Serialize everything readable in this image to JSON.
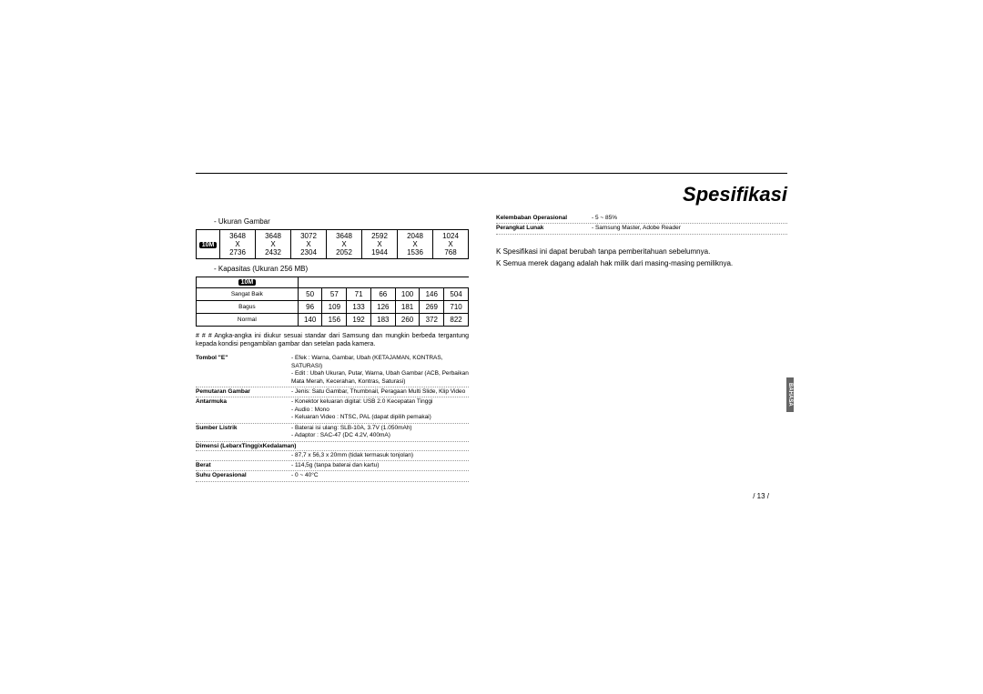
{
  "title": "Spesifikasi",
  "section1_label": "- Ukuran Gambar",
  "icon_label": "10M",
  "table1": {
    "rows": [
      [
        "3648\nX\n2736",
        "3648\nX\n2432",
        "3072\nX\n2304",
        "3648\nX\n2052",
        "2592\nX\n1944",
        "2048\nX\n1536",
        "1024\nX\n768"
      ]
    ]
  },
  "section2_label": "- Kapasitas (Ukuran 256 MB)",
  "table2": {
    "row_labels": [
      "Sangat Baik",
      "Bagus",
      "Normal"
    ],
    "data": [
      [
        "50",
        "57",
        "71",
        "66",
        "100",
        "146",
        "504"
      ],
      [
        "96",
        "109",
        "133",
        "126",
        "181",
        "269",
        "710"
      ],
      [
        "140",
        "156",
        "192",
        "183",
        "260",
        "372",
        "822"
      ]
    ]
  },
  "note_symbol": "# # #",
  "note_text": "Angka-angka ini diukur sesuai standar dari Samsung dan mungkin berbeda tergantung kepada kondisi pengambilan gambar dan setelan pada kamera.",
  "specs_left": [
    {
      "key": "Tombol \"E\"",
      "val": "- Efek : Warna, Gambar, Ubah (KETAJAMAN, KONTRAS, SATURASI)\n- Edit : Ubah Ukuran, Putar, Warna, Ubah Gambar (ACB, Perbaikan Mata Merah, Kecerahan, Kontras, Saturasi)"
    },
    {
      "key": "Pemutaran Gambar",
      "val": "- Jenis: Satu Gambar, Thumbnail, Peragaan Multi Slide, Klip Video"
    },
    {
      "key": "Antarmuka",
      "val": "- Konektor keluaran digital: USB 2.0 Kecepatan Tinggi\n- Audio : Mono\n- Keluaran Video : NTSC, PAL (dapat dipilih pemakai)"
    },
    {
      "key": "Sumber Listrik",
      "val": "- Baterai isi ulang: SLB-10A,  3.7V  (1.050mAh)\n- Adaptor : SAC-47 (DC 4.2V, 400mA)"
    },
    {
      "key": "Dimensi (LebarxTinggixKedalaman)",
      "val": "- 87,7 x 56,3 x 20mm (tidak termasuk tonjolan)"
    },
    {
      "key": "Berat",
      "val": "- 114,5g (tanpa baterai dan kartu)"
    },
    {
      "key": "Suhu Operasional",
      "val": "- 0 ~ 40°C"
    }
  ],
  "specs_right": [
    {
      "key": "Kelembaban Operasional",
      "val": "- 5 ~ 85%"
    },
    {
      "key": "Perangkat Lunak",
      "val": "- Samsung Master, Adobe Reader"
    }
  ],
  "bullets_right": [
    "Spesifikasi ini dapat berubah tanpa pemberitahuan sebelumnya.",
    "Semua merek dagang adalah hak milik dari masing-masing pemiliknya."
  ],
  "bullet_prefix": "K",
  "page_number": "/ 13 /",
  "side_tab": "BAHASA"
}
